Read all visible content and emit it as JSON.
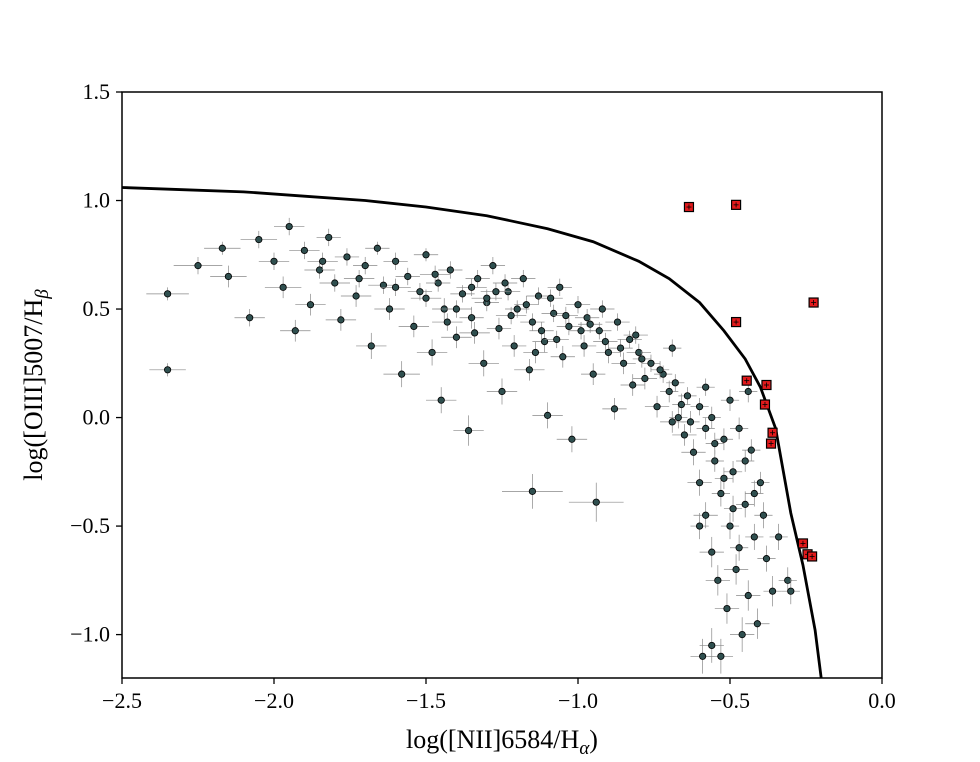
{
  "chart_data": {
    "type": "scatter",
    "title": "",
    "xlabel": "log([NII]6584/H",
    "xlabel_sub": "α",
    "xlabel_close": ")",
    "ylabel": "log([OIII]5007/H",
    "ylabel_sub": "β",
    "xlim": [
      -2.5,
      0.0
    ],
    "ylim": [
      -1.2,
      1.5
    ],
    "x_ticks": [
      -2.5,
      -2.0,
      -1.5,
      -1.0,
      -0.5,
      0.0
    ],
    "x_tick_labels": [
      "−2.5",
      "−2.0",
      "−1.5",
      "−1.0",
      "−0.5",
      "0.0"
    ],
    "y_ticks": [
      -1.0,
      -0.5,
      0.0,
      0.5,
      1.0,
      1.5
    ],
    "y_tick_labels": [
      "−1.0",
      "−0.5",
      "0.0",
      "0.5",
      "1.0",
      "1.5"
    ],
    "grid": false,
    "colors": {
      "galaxy_fill": "#2f4f4f",
      "galaxy_edge": "#000000",
      "error_bar": "#888888",
      "highlight_fill": "#e31a1c",
      "highlight_edge": "#000000",
      "curve": "#000000"
    },
    "demarcation_curve": {
      "x": [
        -2.5,
        -2.3,
        -2.1,
        -1.9,
        -1.7,
        -1.5,
        -1.3,
        -1.1,
        -0.95,
        -0.8,
        -0.7,
        -0.6,
        -0.52,
        -0.45,
        -0.4,
        -0.35,
        -0.3,
        -0.26,
        -0.22,
        -0.2
      ],
      "y": [
        1.06,
        1.05,
        1.04,
        1.02,
        1.0,
        0.97,
        0.93,
        0.87,
        0.81,
        0.72,
        0.64,
        0.53,
        0.4,
        0.27,
        0.14,
        -0.05,
        -0.44,
        -0.68,
        -0.98,
        -1.2
      ]
    },
    "highlighted_points": [
      {
        "x": -0.635,
        "y": 0.97
      },
      {
        "x": -0.48,
        "y": 0.98
      },
      {
        "x": -0.225,
        "y": 0.53
      },
      {
        "x": -0.48,
        "y": 0.44
      },
      {
        "x": -0.445,
        "y": 0.17
      },
      {
        "x": -0.38,
        "y": 0.15
      },
      {
        "x": -0.385,
        "y": 0.06
      },
      {
        "x": -0.36,
        "y": -0.07
      },
      {
        "x": -0.365,
        "y": -0.12
      },
      {
        "x": -0.26,
        "y": -0.58
      },
      {
        "x": -0.245,
        "y": -0.63
      },
      {
        "x": -0.23,
        "y": -0.64
      }
    ],
    "galaxy_points": [
      {
        "x": -2.35,
        "y": 0.57,
        "xe": 0.07,
        "ye": 0.03
      },
      {
        "x": -2.35,
        "y": 0.22,
        "xe": 0.06,
        "ye": 0.03
      },
      {
        "x": -2.25,
        "y": 0.7,
        "xe": 0.08,
        "ye": 0.04
      },
      {
        "x": -2.17,
        "y": 0.78,
        "xe": 0.06,
        "ye": 0.03
      },
      {
        "x": -2.15,
        "y": 0.65,
        "xe": 0.06,
        "ye": 0.05
      },
      {
        "x": -2.08,
        "y": 0.46,
        "xe": 0.05,
        "ye": 0.04
      },
      {
        "x": -2.05,
        "y": 0.82,
        "xe": 0.06,
        "ye": 0.04
      },
      {
        "x": -2.0,
        "y": 0.72,
        "xe": 0.05,
        "ye": 0.04
      },
      {
        "x": -1.97,
        "y": 0.6,
        "xe": 0.06,
        "ye": 0.05
      },
      {
        "x": -1.95,
        "y": 0.88,
        "xe": 0.05,
        "ye": 0.04
      },
      {
        "x": -1.93,
        "y": 0.4,
        "xe": 0.05,
        "ye": 0.05
      },
      {
        "x": -1.9,
        "y": 0.77,
        "xe": 0.05,
        "ye": 0.04
      },
      {
        "x": -1.88,
        "y": 0.52,
        "xe": 0.05,
        "ye": 0.05
      },
      {
        "x": -1.85,
        "y": 0.68,
        "xe": 0.05,
        "ye": 0.04
      },
      {
        "x": -1.82,
        "y": 0.83,
        "xe": 0.04,
        "ye": 0.04
      },
      {
        "x": -1.8,
        "y": 0.62,
        "xe": 0.05,
        "ye": 0.04
      },
      {
        "x": -1.78,
        "y": 0.45,
        "xe": 0.05,
        "ye": 0.05
      },
      {
        "x": -1.76,
        "y": 0.74,
        "xe": 0.04,
        "ye": 0.04
      },
      {
        "x": -1.73,
        "y": 0.56,
        "xe": 0.05,
        "ye": 0.05
      },
      {
        "x": -1.7,
        "y": 0.7,
        "xe": 0.04,
        "ye": 0.04
      },
      {
        "x": -1.68,
        "y": 0.33,
        "xe": 0.05,
        "ye": 0.06
      },
      {
        "x": -1.66,
        "y": 0.78,
        "xe": 0.04,
        "ye": 0.03
      },
      {
        "x": -1.64,
        "y": 0.61,
        "xe": 0.05,
        "ye": 0.04
      },
      {
        "x": -1.62,
        "y": 0.5,
        "xe": 0.05,
        "ye": 0.05
      },
      {
        "x": -1.6,
        "y": 0.72,
        "xe": 0.04,
        "ye": 0.04
      },
      {
        "x": -1.58,
        "y": 0.2,
        "xe": 0.06,
        "ye": 0.06
      },
      {
        "x": -1.56,
        "y": 0.65,
        "xe": 0.04,
        "ye": 0.04
      },
      {
        "x": -1.54,
        "y": 0.42,
        "xe": 0.05,
        "ye": 0.05
      },
      {
        "x": -1.52,
        "y": 0.58,
        "xe": 0.04,
        "ye": 0.04
      },
      {
        "x": -1.5,
        "y": 0.75,
        "xe": 0.04,
        "ye": 0.03
      },
      {
        "x": -1.48,
        "y": 0.3,
        "xe": 0.05,
        "ye": 0.06
      },
      {
        "x": -1.46,
        "y": 0.62,
        "xe": 0.04,
        "ye": 0.04
      },
      {
        "x": -1.45,
        "y": 0.08,
        "xe": 0.05,
        "ye": 0.06
      },
      {
        "x": -1.44,
        "y": 0.5,
        "xe": 0.04,
        "ye": 0.05
      },
      {
        "x": -1.42,
        "y": 0.68,
        "xe": 0.04,
        "ye": 0.04
      },
      {
        "x": -1.4,
        "y": 0.37,
        "xe": 0.05,
        "ye": 0.05
      },
      {
        "x": -1.38,
        "y": 0.57,
        "xe": 0.04,
        "ye": 0.04
      },
      {
        "x": -1.36,
        "y": -0.06,
        "xe": 0.05,
        "ye": 0.07
      },
      {
        "x": -1.35,
        "y": 0.46,
        "xe": 0.04,
        "ye": 0.05
      },
      {
        "x": -1.33,
        "y": 0.64,
        "xe": 0.04,
        "ye": 0.04
      },
      {
        "x": -1.31,
        "y": 0.25,
        "xe": 0.05,
        "ye": 0.06
      },
      {
        "x": -1.3,
        "y": 0.53,
        "xe": 0.04,
        "ye": 0.04
      },
      {
        "x": -1.28,
        "y": 0.7,
        "xe": 0.04,
        "ye": 0.04
      },
      {
        "x": -1.26,
        "y": 0.41,
        "xe": 0.04,
        "ye": 0.05
      },
      {
        "x": -1.25,
        "y": 0.12,
        "xe": 0.05,
        "ye": 0.06
      },
      {
        "x": -1.23,
        "y": 0.58,
        "xe": 0.04,
        "ye": 0.04
      },
      {
        "x": -1.21,
        "y": 0.33,
        "xe": 0.04,
        "ye": 0.05
      },
      {
        "x": -1.2,
        "y": 0.5,
        "xe": 0.04,
        "ye": 0.04
      },
      {
        "x": -1.18,
        "y": 0.64,
        "xe": 0.04,
        "ye": 0.04
      },
      {
        "x": -1.16,
        "y": 0.22,
        "xe": 0.05,
        "ye": 0.05
      },
      {
        "x": -1.15,
        "y": 0.44,
        "xe": 0.04,
        "ye": 0.04
      },
      {
        "x": -1.13,
        "y": 0.56,
        "xe": 0.04,
        "ye": 0.04
      },
      {
        "x": -1.11,
        "y": 0.35,
        "xe": 0.04,
        "ye": 0.05
      },
      {
        "x": -1.1,
        "y": 0.01,
        "xe": 0.05,
        "ye": 0.06
      },
      {
        "x": -1.08,
        "y": 0.48,
        "xe": 0.04,
        "ye": 0.04
      },
      {
        "x": -1.06,
        "y": 0.6,
        "xe": 0.04,
        "ye": 0.04
      },
      {
        "x": -1.05,
        "y": 0.28,
        "xe": 0.04,
        "ye": 0.05
      },
      {
        "x": -1.03,
        "y": 0.42,
        "xe": 0.04,
        "ye": 0.04
      },
      {
        "x": -1.02,
        "y": -0.1,
        "xe": 0.05,
        "ye": 0.06
      },
      {
        "x": -1.0,
        "y": 0.52,
        "xe": 0.04,
        "ye": 0.04
      },
      {
        "x": -0.98,
        "y": 0.33,
        "xe": 0.04,
        "ye": 0.05
      },
      {
        "x": -0.97,
        "y": 0.46,
        "xe": 0.04,
        "ye": 0.04
      },
      {
        "x": -0.95,
        "y": 0.2,
        "xe": 0.04,
        "ye": 0.05
      },
      {
        "x": -0.93,
        "y": 0.4,
        "xe": 0.04,
        "ye": 0.04
      },
      {
        "x": -0.92,
        "y": 0.5,
        "xe": 0.04,
        "ye": 0.04
      },
      {
        "x": -0.9,
        "y": 0.3,
        "xe": 0.04,
        "ye": 0.05
      },
      {
        "x": -0.88,
        "y": 0.04,
        "xe": 0.04,
        "ye": 0.05
      },
      {
        "x": -0.87,
        "y": 0.44,
        "xe": 0.04,
        "ye": 0.04
      },
      {
        "x": -0.85,
        "y": 0.25,
        "xe": 0.04,
        "ye": 0.05
      },
      {
        "x": -0.83,
        "y": 0.36,
        "xe": 0.04,
        "ye": 0.04
      },
      {
        "x": -0.82,
        "y": 0.15,
        "xe": 0.04,
        "ye": 0.05
      },
      {
        "x": -0.8,
        "y": 0.3,
        "xe": 0.04,
        "ye": 0.04
      },
      {
        "x": -0.78,
        "y": 0.18,
        "xe": 0.04,
        "ye": 0.05
      },
      {
        "x": -0.76,
        "y": 0.25,
        "xe": 0.03,
        "ye": 0.04
      },
      {
        "x": -0.74,
        "y": 0.05,
        "xe": 0.04,
        "ye": 0.05
      },
      {
        "x": -0.72,
        "y": 0.2,
        "xe": 0.03,
        "ye": 0.04
      },
      {
        "x": -0.7,
        "y": 0.12,
        "xe": 0.03,
        "ye": 0.05
      },
      {
        "x": -0.69,
        "y": -0.02,
        "xe": 0.04,
        "ye": 0.05
      },
      {
        "x": -0.68,
        "y": 0.16,
        "xe": 0.03,
        "ye": 0.04
      },
      {
        "x": -0.66,
        "y": 0.06,
        "xe": 0.03,
        "ye": 0.05
      },
      {
        "x": -0.65,
        "y": -0.08,
        "xe": 0.04,
        "ye": 0.05
      },
      {
        "x": -0.64,
        "y": 0.1,
        "xe": 0.03,
        "ye": 0.04
      },
      {
        "x": -0.63,
        "y": -0.02,
        "xe": 0.03,
        "ye": 0.05
      },
      {
        "x": -0.62,
        "y": -0.16,
        "xe": 0.04,
        "ye": 0.06
      },
      {
        "x": -0.6,
        "y": 0.05,
        "xe": 0.03,
        "ye": 0.04
      },
      {
        "x": -0.6,
        "y": -0.3,
        "xe": 0.04,
        "ye": 0.06
      },
      {
        "x": -0.58,
        "y": -0.05,
        "xe": 0.03,
        "ye": 0.05
      },
      {
        "x": -0.58,
        "y": -0.45,
        "xe": 0.04,
        "ye": 0.06
      },
      {
        "x": -0.56,
        "y": 0.0,
        "xe": 0.03,
        "ye": 0.05
      },
      {
        "x": -0.56,
        "y": -0.62,
        "xe": 0.04,
        "ye": 0.07
      },
      {
        "x": -0.55,
        "y": -0.2,
        "xe": 0.03,
        "ye": 0.05
      },
      {
        "x": -0.54,
        "y": -0.75,
        "xe": 0.04,
        "ye": 0.07
      },
      {
        "x": -0.53,
        "y": -0.35,
        "xe": 0.03,
        "ye": 0.06
      },
      {
        "x": -0.52,
        "y": -0.1,
        "xe": 0.03,
        "ye": 0.05
      },
      {
        "x": -0.51,
        "y": -0.88,
        "xe": 0.04,
        "ye": 0.07
      },
      {
        "x": -0.5,
        "y": -0.5,
        "xe": 0.03,
        "ye": 0.06
      },
      {
        "x": -0.49,
        "y": -0.25,
        "xe": 0.03,
        "ye": 0.05
      },
      {
        "x": -0.48,
        "y": -0.7,
        "xe": 0.04,
        "ye": 0.07
      },
      {
        "x": -0.47,
        "y": -0.05,
        "xe": 0.03,
        "ye": 0.05
      },
      {
        "x": -0.46,
        "y": -1.0,
        "xe": 0.04,
        "ye": 0.08
      },
      {
        "x": -0.45,
        "y": -0.4,
        "xe": 0.03,
        "ye": 0.06
      },
      {
        "x": -0.44,
        "y": -0.82,
        "xe": 0.04,
        "ye": 0.07
      },
      {
        "x": -0.43,
        "y": -0.15,
        "xe": 0.03,
        "ye": 0.05
      },
      {
        "x": -0.42,
        "y": -0.55,
        "xe": 0.03,
        "ye": 0.06
      },
      {
        "x": -0.41,
        "y": -0.95,
        "xe": 0.04,
        "ye": 0.07
      },
      {
        "x": -0.4,
        "y": -0.3,
        "xe": 0.03,
        "ye": 0.05
      },
      {
        "x": -0.38,
        "y": -0.65,
        "xe": 0.03,
        "ye": 0.06
      },
      {
        "x": -0.36,
        "y": -0.8,
        "xe": 0.03,
        "ye": 0.07
      },
      {
        "x": -0.34,
        "y": -0.55,
        "xe": 0.03,
        "ye": 0.06
      },
      {
        "x": -0.31,
        "y": -0.75,
        "xe": 0.03,
        "ye": 0.06
      },
      {
        "x": -0.3,
        "y": -0.8,
        "xe": 0.03,
        "ye": 0.06
      },
      {
        "x": -0.59,
        "y": -1.1,
        "xe": 0.04,
        "ye": 0.08
      },
      {
        "x": -0.56,
        "y": -1.05,
        "xe": 0.04,
        "ye": 0.08
      },
      {
        "x": -0.53,
        "y": -1.1,
        "xe": 0.04,
        "ye": 0.08
      },
      {
        "x": -0.69,
        "y": 0.32,
        "xe": 0.03,
        "ye": 0.04
      },
      {
        "x": -0.6,
        "y": -0.5,
        "xe": 0.03,
        "ye": 0.06
      },
      {
        "x": -0.58,
        "y": 0.14,
        "xe": 0.03,
        "ye": 0.04
      },
      {
        "x": -0.44,
        "y": 0.12,
        "xe": 0.03,
        "ye": 0.05
      },
      {
        "x": -0.5,
        "y": 0.08,
        "xe": 0.03,
        "ye": 0.05
      },
      {
        "x": -1.15,
        "y": -0.34,
        "xe": 0.1,
        "ye": 0.08
      },
      {
        "x": -0.94,
        "y": -0.39,
        "xe": 0.09,
        "ye": 0.09
      },
      {
        "x": -1.3,
        "y": 0.55,
        "xe": 0.05,
        "ye": 0.04
      },
      {
        "x": -1.22,
        "y": 0.47,
        "xe": 0.05,
        "ye": 0.04
      },
      {
        "x": -1.12,
        "y": 0.4,
        "xe": 0.04,
        "ye": 0.04
      },
      {
        "x": -1.07,
        "y": 0.36,
        "xe": 0.04,
        "ye": 0.04
      },
      {
        "x": -0.99,
        "y": 0.4,
        "xe": 0.04,
        "ye": 0.04
      },
      {
        "x": -0.91,
        "y": 0.35,
        "xe": 0.04,
        "ye": 0.04
      },
      {
        "x": -0.86,
        "y": 0.32,
        "xe": 0.04,
        "ye": 0.04
      },
      {
        "x": -0.79,
        "y": 0.27,
        "xe": 0.03,
        "ye": 0.04
      },
      {
        "x": -0.73,
        "y": 0.22,
        "xe": 0.03,
        "ye": 0.04
      },
      {
        "x": -1.6,
        "y": 0.6,
        "xe": 0.05,
        "ye": 0.04
      },
      {
        "x": -1.5,
        "y": 0.55,
        "xe": 0.05,
        "ye": 0.04
      },
      {
        "x": -1.4,
        "y": 0.5,
        "xe": 0.05,
        "ye": 0.04
      },
      {
        "x": -1.35,
        "y": 0.6,
        "xe": 0.05,
        "ye": 0.04
      },
      {
        "x": -1.27,
        "y": 0.58,
        "xe": 0.05,
        "ye": 0.04
      },
      {
        "x": -1.17,
        "y": 0.52,
        "xe": 0.04,
        "ye": 0.04
      },
      {
        "x": -1.09,
        "y": 0.55,
        "xe": 0.04,
        "ye": 0.04
      },
      {
        "x": -1.04,
        "y": 0.47,
        "xe": 0.04,
        "ye": 0.04
      },
      {
        "x": -0.96,
        "y": 0.43,
        "xe": 0.04,
        "ye": 0.04
      },
      {
        "x": -1.72,
        "y": 0.64,
        "xe": 0.05,
        "ye": 0.04
      },
      {
        "x": -1.84,
        "y": 0.72,
        "xe": 0.05,
        "ye": 0.04
      },
      {
        "x": -1.47,
        "y": 0.66,
        "xe": 0.05,
        "ye": 0.04
      },
      {
        "x": -1.43,
        "y": 0.44,
        "xe": 0.05,
        "ye": 0.04
      },
      {
        "x": -1.34,
        "y": 0.39,
        "xe": 0.05,
        "ye": 0.05
      },
      {
        "x": -1.24,
        "y": 0.62,
        "xe": 0.04,
        "ye": 0.04
      },
      {
        "x": -1.14,
        "y": 0.3,
        "xe": 0.04,
        "ye": 0.05
      },
      {
        "x": -0.81,
        "y": 0.38,
        "xe": 0.04,
        "ye": 0.04
      },
      {
        "x": -0.67,
        "y": 0.0,
        "xe": 0.03,
        "ye": 0.05
      },
      {
        "x": -0.55,
        "y": -0.12,
        "xe": 0.03,
        "ye": 0.05
      },
      {
        "x": -0.52,
        "y": -0.28,
        "xe": 0.03,
        "ye": 0.05
      },
      {
        "x": -0.49,
        "y": -0.42,
        "xe": 0.03,
        "ye": 0.06
      },
      {
        "x": -0.47,
        "y": -0.6,
        "xe": 0.03,
        "ye": 0.06
      },
      {
        "x": -0.45,
        "y": -0.2,
        "xe": 0.03,
        "ye": 0.05
      },
      {
        "x": -0.42,
        "y": -0.35,
        "xe": 0.03,
        "ye": 0.06
      },
      {
        "x": -0.39,
        "y": -0.45,
        "xe": 0.03,
        "ye": 0.06
      }
    ]
  }
}
